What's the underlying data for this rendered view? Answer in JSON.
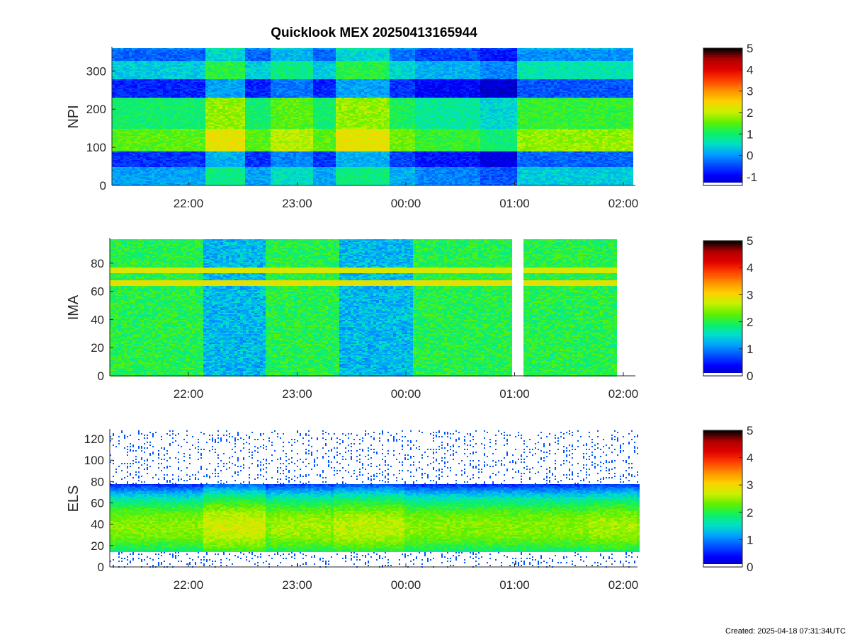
{
  "figure": {
    "title": "Quicklook MEX 20250413165944",
    "created": "Created: 2025-04-18 07:31:34UTC"
  },
  "colormap": [
    "#0000b4",
    "#0000ff",
    "#0050ff",
    "#00a0ff",
    "#00e0c8",
    "#10f060",
    "#60f000",
    "#c8f000",
    "#ffd000",
    "#ff9000",
    "#ff4000",
    "#e00000",
    "#b00000",
    "#000000"
  ],
  "chart_data": [
    {
      "type": "heatmap",
      "name": "NPI",
      "ylabel": "NPI",
      "ylim": [
        0,
        360
      ],
      "yticks": [
        0,
        100,
        200,
        300
      ],
      "x_tick_labels": [
        "22:00",
        "23:00",
        "00:00",
        "01:00",
        "02:00"
      ],
      "colorbar": {
        "range": [
          -1.4,
          5
        ],
        "ticks": [
          "-1",
          "0",
          "1",
          "2",
          "3",
          "4",
          "5"
        ]
      },
      "bands": [
        {
          "y": [
            0,
            50
          ],
          "level": 0.1
        },
        {
          "y": [
            50,
            90
          ],
          "level": -0.6
        },
        {
          "y": [
            90,
            150
          ],
          "level": 1.5
        },
        {
          "y": [
            150,
            232
          ],
          "level": 1.0
        },
        {
          "y": [
            232,
            280
          ],
          "level": -0.7
        },
        {
          "y": [
            280,
            330
          ],
          "level": 0.4
        },
        {
          "y": [
            330,
            360
          ],
          "level": -0.3
        }
      ],
      "intervals": [
        {
          "t": [
            "21:40",
            "22:09"
          ],
          "delta": 0
        },
        {
          "t": [
            "22:09",
            "22:30"
          ],
          "delta": 0.8
        },
        {
          "t": [
            "22:30",
            "22:45"
          ],
          "delta": 0
        },
        {
          "t": [
            "22:45",
            "23:08"
          ],
          "delta": 0.5
        },
        {
          "t": [
            "23:08",
            "23:20"
          ],
          "delta": 0
        },
        {
          "t": [
            "23:20",
            "23:50"
          ],
          "delta": 0.8
        },
        {
          "t": [
            "23:50",
            "00:05"
          ],
          "delta": 0.1
        },
        {
          "t": [
            "00:05",
            "00:40"
          ],
          "delta": -0.2
        },
        {
          "t": [
            "00:40",
            "01:00"
          ],
          "delta": -0.5
        },
        {
          "t": [
            "01:00",
            "02:06"
          ],
          "delta": 0.3
        }
      ]
    },
    {
      "type": "heatmap",
      "name": "IMA",
      "ylabel": "IMA",
      "ylim": [
        0,
        97
      ],
      "yticks": [
        0,
        20,
        40,
        60,
        80
      ],
      "x_tick_labels": [
        "22:00",
        "23:00",
        "00:00",
        "01:00",
        "02:00"
      ],
      "colorbar": {
        "range": [
          0,
          5
        ],
        "ticks": [
          "0",
          "1",
          "2",
          "3",
          "4",
          "5"
        ]
      },
      "base_level": 2.0,
      "lines": [
        {
          "y": 66,
          "level": 2.9
        },
        {
          "y": 75,
          "level": 2.8
        }
      ],
      "intervals": [
        {
          "t": [
            "22:08",
            "22:42"
          ],
          "delta": -0.7
        },
        {
          "t": [
            "23:23",
            "00:03"
          ],
          "delta": -0.7
        }
      ],
      "data_gaps": [
        {
          "t": [
            "00:58",
            "01:04"
          ]
        },
        {
          "t": [
            "01:58",
            "02:06"
          ]
        }
      ]
    },
    {
      "type": "heatmap",
      "name": "ELS",
      "ylabel": "ELS",
      "ylim": [
        0,
        128
      ],
      "yticks": [
        0,
        20,
        40,
        60,
        80,
        100,
        120
      ],
      "x_tick_labels": [
        "22:00",
        "23:00",
        "00:00",
        "01:00",
        "02:00"
      ],
      "colorbar": {
        "range": [
          0,
          5
        ],
        "ticks": [
          "0",
          "1",
          "2",
          "3",
          "4",
          "5"
        ]
      },
      "peak_y": 38,
      "peak_level": 1.9,
      "band_y": [
        15,
        78
      ],
      "intervals": [
        {
          "t": [
            "22:07",
            "22:42"
          ],
          "delta": 0.3
        },
        {
          "t": [
            "22:45",
            "23:18"
          ],
          "delta": 0.1
        },
        {
          "t": [
            "23:20",
            "23:58"
          ],
          "delta": 0.2
        },
        {
          "t": [
            "01:40",
            "02:06"
          ],
          "delta": 0.1
        }
      ]
    }
  ]
}
